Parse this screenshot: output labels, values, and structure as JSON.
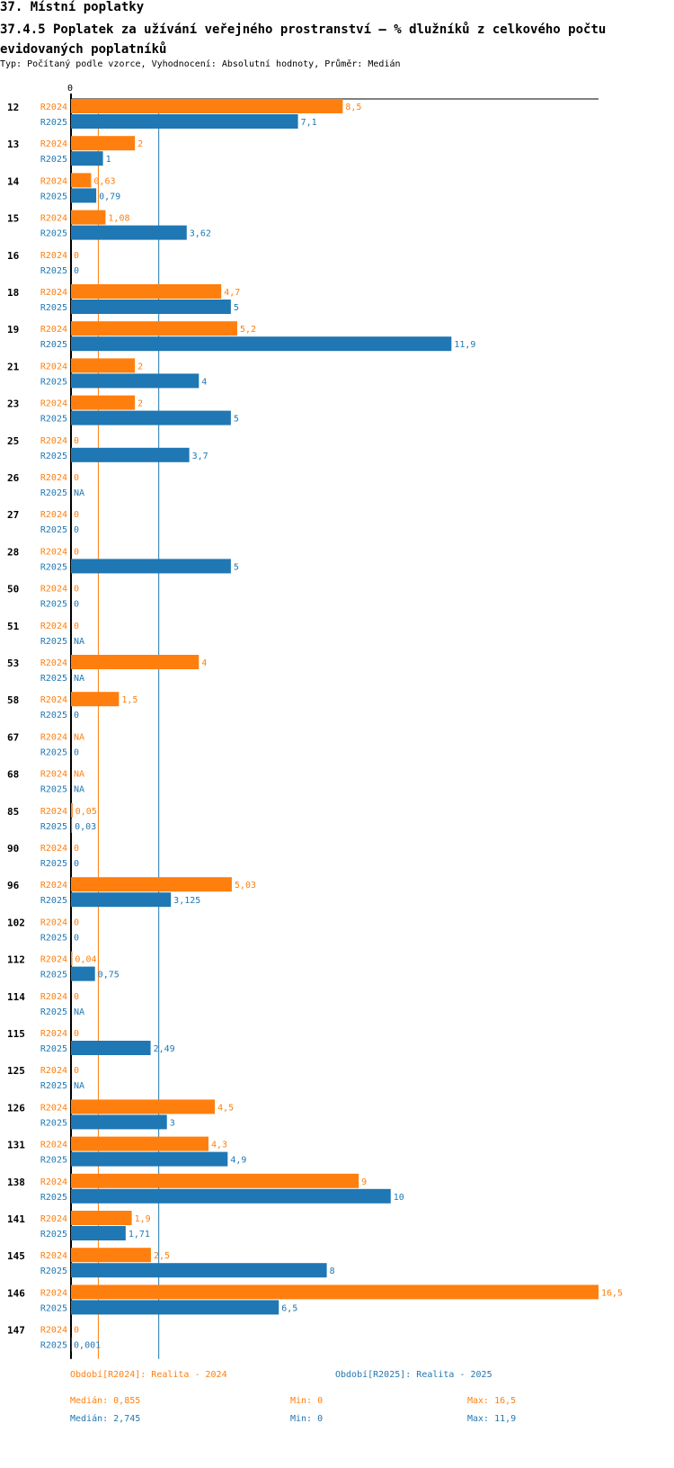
{
  "header": {
    "title": "37. Místní poplatky",
    "subtitle": "37.4.5 Poplatek za užívání veřejného prostranství – % dlužníků z celkového počtu evidovaných poplatníků",
    "info": "Typ: Počítaný podle vzorce, Vyhodnocení: Absolutní hodnoty, Průměr: Medián"
  },
  "colors": {
    "r2024": "#ff7f0e",
    "r2025": "#1f77b4",
    "axis": "#000000"
  },
  "chart_data": {
    "type": "bar",
    "orientation": "horizontal",
    "title": "37.4.5 Poplatek za užívání veřejného prostranství – % dlužníků z celkového počtu evidovaných poplatníků",
    "xlim": [
      0,
      16.5
    ],
    "zero_label": "0",
    "categories": [
      "12",
      "13",
      "14",
      "15",
      "16",
      "18",
      "19",
      "21",
      "23",
      "25",
      "26",
      "27",
      "28",
      "50",
      "51",
      "53",
      "58",
      "67",
      "68",
      "85",
      "90",
      "96",
      "102",
      "112",
      "114",
      "115",
      "125",
      "126",
      "131",
      "138",
      "141",
      "145",
      "146",
      "147"
    ],
    "series": [
      {
        "name": "R2024",
        "color": "#ff7f0e",
        "values": [
          8.5,
          2,
          0.63,
          1.08,
          0,
          4.7,
          5.2,
          2,
          2,
          0,
          0,
          0,
          0,
          0,
          0,
          4,
          1.5,
          null,
          null,
          0.05,
          0,
          5.03,
          0,
          0.04,
          0,
          0,
          0,
          4.5,
          4.3,
          9,
          1.9,
          2.5,
          16.5,
          0
        ],
        "labels": [
          "8,5",
          "2",
          "0,63",
          "1,08",
          "0",
          "4,7",
          "5,2",
          "2",
          "2",
          "0",
          "0",
          "0",
          "0",
          "0",
          "0",
          "4",
          "1,5",
          "NA",
          "NA",
          "0,05",
          "0",
          "5,03",
          "0",
          "0,04",
          "0",
          "0",
          "0",
          "4,5",
          "4,3",
          "9",
          "1,9",
          "2,5",
          "16,5",
          "0"
        ]
      },
      {
        "name": "R2025",
        "color": "#1f77b4",
        "values": [
          7.1,
          1,
          0.79,
          3.62,
          0,
          5,
          11.9,
          4,
          5,
          3.7,
          null,
          0,
          5,
          0,
          null,
          null,
          0,
          0,
          null,
          0.03,
          0,
          3.125,
          0,
          0.75,
          null,
          2.49,
          null,
          3,
          4.9,
          10,
          1.71,
          8,
          6.5,
          0.001
        ],
        "labels": [
          "7,1",
          "1",
          "0,79",
          "3,62",
          "0",
          "5",
          "11,9",
          "4",
          "5",
          "3,7",
          "NA",
          "0",
          "5",
          "0",
          "NA",
          "NA",
          "0",
          "0",
          "NA",
          "0,03",
          "0",
          "3,125",
          "0",
          "0,75",
          "NA",
          "2,49",
          "NA",
          "3",
          "4,9",
          "10",
          "1,71",
          "8",
          "6,5",
          "0,001"
        ]
      }
    ],
    "medians": {
      "R2024": 0.855,
      "R2025": 2.745
    }
  },
  "footer": {
    "legend_2024": "Období[R2024]: Realita - 2024",
    "legend_2025": "Období[R2025]: Realita - 2025",
    "median_2024": "Medián: 0,855",
    "min_2024": "Min: 0",
    "max_2024": "Max: 16,5",
    "median_2025": "Medián: 2,745",
    "min_2025": "Min: 0",
    "max_2025": "Max: 11,9"
  }
}
